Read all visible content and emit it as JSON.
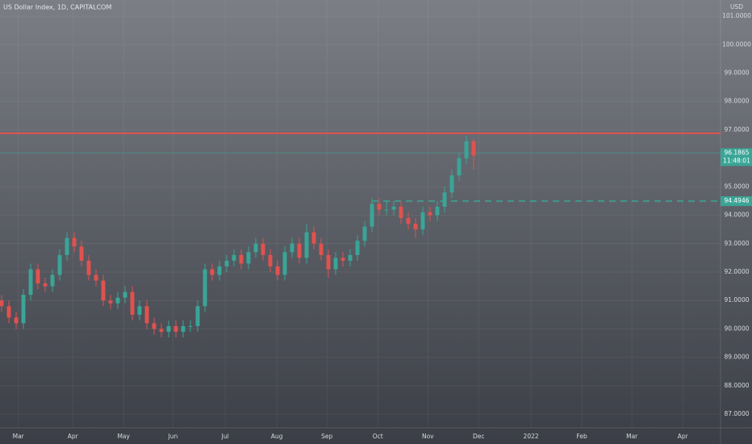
{
  "chart_data": {
    "type": "candlestick",
    "title": "US Dollar Index, 1D, CAPITALCOM",
    "currency": "USD",
    "up_color": "#3aa597",
    "down_color": "#e0524f",
    "x": [
      0,
      1,
      2,
      3,
      4,
      5,
      6,
      7,
      8,
      9,
      10,
      11,
      12,
      13,
      14,
      15,
      16,
      17,
      18,
      19,
      20,
      21,
      22,
      23,
      24,
      25,
      26,
      27,
      28,
      29,
      30,
      31,
      32,
      33,
      34,
      35,
      36,
      37,
      38,
      39,
      40,
      41,
      42,
      43,
      44,
      45,
      46,
      47,
      48,
      49,
      50,
      51,
      52,
      53,
      54,
      55,
      56,
      57,
      58,
      59,
      60,
      61,
      62,
      63,
      64,
      65
    ],
    "open": [
      91.0,
      90.8,
      90.4,
      90.2,
      91.2,
      92.1,
      91.6,
      91.5,
      91.9,
      92.6,
      93.2,
      92.9,
      92.4,
      91.9,
      91.7,
      91.0,
      90.9,
      91.1,
      91.3,
      90.5,
      90.8,
      90.2,
      90.0,
      89.9,
      90.1,
      89.9,
      90.1,
      90.1,
      90.8,
      92.1,
      91.9,
      92.2,
      92.4,
      92.6,
      92.3,
      92.7,
      93.0,
      92.6,
      92.2,
      91.9,
      92.7,
      93.0,
      92.5,
      93.4,
      93.0,
      92.6,
      92.1,
      92.5,
      92.4,
      92.6,
      93.1,
      93.6,
      94.4,
      94.2,
      94.2,
      94.3,
      93.9,
      93.7,
      93.5,
      94.1,
      94.0,
      94.3,
      94.8,
      95.4,
      96.0,
      96.6
    ],
    "high": [
      91.2,
      91.0,
      90.6,
      91.4,
      92.3,
      92.3,
      91.8,
      92.1,
      92.8,
      93.4,
      93.4,
      93.1,
      92.6,
      92.1,
      91.9,
      91.2,
      91.3,
      91.5,
      91.5,
      91.0,
      91.0,
      90.4,
      90.2,
      90.3,
      90.3,
      90.3,
      90.3,
      91.0,
      92.3,
      92.3,
      92.4,
      92.6,
      92.8,
      92.8,
      92.9,
      93.2,
      93.2,
      92.8,
      92.4,
      92.9,
      93.2,
      93.2,
      93.7,
      93.6,
      93.2,
      92.8,
      92.7,
      92.7,
      92.8,
      93.3,
      93.8,
      94.6,
      94.6,
      94.5,
      94.5,
      94.5,
      94.1,
      93.9,
      94.3,
      94.3,
      94.5,
      95.0,
      95.6,
      96.2,
      96.8,
      96.7
    ],
    "low": [
      90.6,
      90.2,
      90.0,
      90.0,
      91.0,
      91.4,
      91.3,
      91.3,
      91.7,
      92.4,
      92.7,
      92.2,
      91.7,
      91.5,
      90.8,
      90.7,
      90.7,
      90.9,
      90.3,
      90.3,
      90.0,
      89.8,
      89.7,
      89.7,
      89.7,
      89.7,
      89.9,
      89.9,
      90.6,
      91.7,
      91.7,
      92.0,
      92.2,
      92.1,
      92.1,
      92.5,
      92.4,
      92.0,
      91.7,
      91.7,
      92.5,
      92.3,
      92.3,
      92.8,
      92.4,
      91.8,
      91.9,
      92.2,
      92.2,
      92.4,
      92.9,
      93.4,
      94.0,
      94.0,
      94.0,
      93.7,
      93.5,
      93.2,
      93.3,
      93.8,
      93.8,
      94.1,
      94.6,
      95.2,
      95.8,
      95.6
    ],
    "close": [
      90.8,
      90.4,
      90.2,
      91.2,
      92.1,
      91.6,
      91.5,
      91.9,
      92.6,
      93.2,
      92.9,
      92.4,
      91.9,
      91.7,
      91.0,
      90.9,
      91.1,
      91.3,
      90.5,
      90.8,
      90.2,
      90.0,
      89.9,
      90.1,
      89.9,
      90.1,
      90.1,
      90.8,
      92.1,
      91.9,
      92.2,
      92.4,
      92.6,
      92.3,
      92.7,
      93.0,
      92.6,
      92.2,
      91.9,
      92.7,
      93.0,
      92.5,
      93.4,
      93.0,
      92.6,
      92.1,
      92.5,
      92.4,
      92.6,
      93.1,
      93.6,
      94.4,
      94.2,
      94.2,
      94.3,
      93.9,
      93.7,
      93.5,
      94.1,
      94.0,
      94.3,
      94.8,
      95.4,
      96.0,
      96.6,
      96.1
    ],
    "xlim": [
      0,
      99
    ],
    "xticks": [
      {
        "value": 2.3,
        "label": "Mar"
      },
      {
        "value": 9.8,
        "label": "Apr"
      },
      {
        "value": 16.8,
        "label": "May"
      },
      {
        "value": 23.6,
        "label": "Jun"
      },
      {
        "value": 30.8,
        "label": "Jul"
      },
      {
        "value": 37.9,
        "label": "Aug"
      },
      {
        "value": 44.8,
        "label": "Sep"
      },
      {
        "value": 51.8,
        "label": "Oct"
      },
      {
        "value": 58.7,
        "label": "Nov"
      },
      {
        "value": 65.7,
        "label": "Dec"
      },
      {
        "value": 72.9,
        "label": "2022"
      },
      {
        "value": 79.9,
        "label": "Feb"
      },
      {
        "value": 86.8,
        "label": "Mar"
      },
      {
        "value": 93.8,
        "label": "Apr"
      }
    ],
    "ylim": [
      86.52,
      101.57
    ],
    "yticks": [
      {
        "value": 87,
        "label": "87.0000"
      },
      {
        "value": 88,
        "label": "88.0000"
      },
      {
        "value": 89,
        "label": "89.0000"
      },
      {
        "value": 90,
        "label": "90.0000"
      },
      {
        "value": 91,
        "label": "91.0000"
      },
      {
        "value": 92,
        "label": "92.0000"
      },
      {
        "value": 93,
        "label": "93.0000"
      },
      {
        "value": 94,
        "label": "94.0000"
      },
      {
        "value": 95,
        "label": "95.0000"
      },
      {
        "value": 97,
        "label": "97.0000"
      },
      {
        "value": 98,
        "label": "98.0000"
      },
      {
        "value": 99,
        "label": "99.0000"
      },
      {
        "value": 100,
        "label": "100.0000"
      },
      {
        "value": 101,
        "label": "101.0000"
      }
    ],
    "grid": true,
    "resistance": {
      "value": 96.88,
      "color": "#e0524f"
    },
    "last_price": {
      "value": 96.1865,
      "countdown": "11:48:01",
      "color": "#3aa597"
    },
    "dashed_level": {
      "value": 94.4946,
      "start": 51,
      "color": "#3aa597"
    }
  }
}
